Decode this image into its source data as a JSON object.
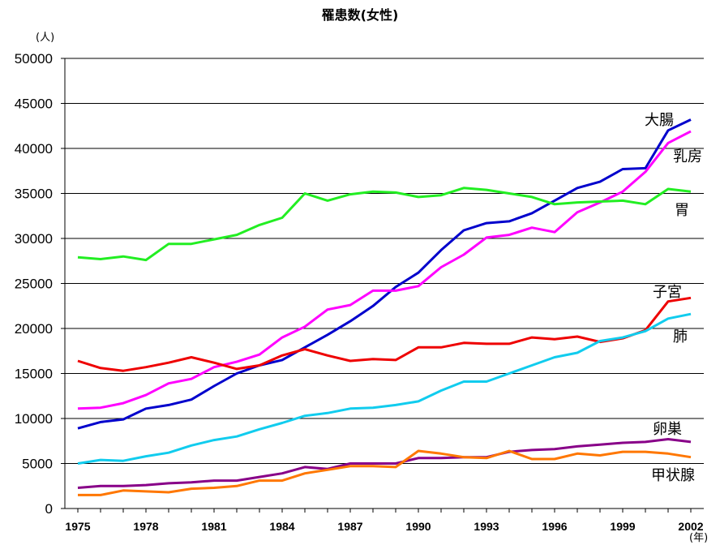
{
  "chart_data": {
    "type": "line",
    "title": "罹患数(女性)",
    "ylabel": "(人)",
    "xlabel": "(年)",
    "xlim": [
      1975,
      2002
    ],
    "ylim": [
      0,
      50000
    ],
    "yticks": [
      0,
      5000,
      10000,
      15000,
      20000,
      25000,
      30000,
      35000,
      40000,
      45000,
      50000
    ],
    "xticks": [
      1975,
      1978,
      1981,
      1984,
      1987,
      1990,
      1993,
      1996,
      1999,
      2002
    ],
    "grid": "horizontal",
    "legend": "inline-right",
    "x": [
      1975,
      1976,
      1977,
      1978,
      1979,
      1980,
      1981,
      1982,
      1983,
      1984,
      1985,
      1986,
      1987,
      1988,
      1989,
      1990,
      1991,
      1992,
      1993,
      1994,
      1995,
      1996,
      1997,
      1998,
      1999,
      2000,
      2001,
      2002
    ],
    "series": [
      {
        "name": "大腸",
        "color": "#0000cc",
        "values": [
          8900,
          9600,
          9900,
          11100,
          11500,
          12100,
          13600,
          15000,
          15900,
          16500,
          17900,
          19300,
          20800,
          22500,
          24600,
          26200,
          28700,
          30900,
          31700,
          31900,
          32800,
          34200,
          35600,
          36300,
          37700,
          37800,
          42000,
          43200
        ]
      },
      {
        "name": "乳房",
        "color": "#ff00ff",
        "values": [
          11100,
          11200,
          11700,
          12600,
          13900,
          14400,
          15700,
          16300,
          17100,
          19000,
          20200,
          22100,
          22600,
          24200,
          24200,
          24700,
          26800,
          28200,
          30100,
          30400,
          31200,
          30700,
          32900,
          34000,
          35200,
          37400,
          40600,
          41900
        ]
      },
      {
        "name": "胃",
        "color": "#22ee22",
        "values": [
          27900,
          27700,
          28000,
          27600,
          29400,
          29400,
          29900,
          30400,
          31500,
          32300,
          35000,
          34200,
          34900,
          35200,
          35100,
          34600,
          34800,
          35600,
          35400,
          35000,
          34600,
          33800,
          34000,
          34100,
          34200,
          33800,
          35500,
          35200
        ]
      },
      {
        "name": "子宮",
        "color": "#ee0000",
        "values": [
          16400,
          15600,
          15300,
          15700,
          16200,
          16800,
          16200,
          15500,
          15900,
          17000,
          17700,
          17000,
          16400,
          16600,
          16500,
          17900,
          17900,
          18400,
          18300,
          18300,
          19000,
          18800,
          19100,
          18500,
          18900,
          19800,
          23000,
          23400
        ]
      },
      {
        "name": "肺",
        "color": "#11ccee",
        "values": [
          5000,
          5400,
          5300,
          5800,
          6200,
          7000,
          7600,
          8000,
          8800,
          9500,
          10300,
          10600,
          11100,
          11200,
          11500,
          11900,
          13100,
          14100,
          14100,
          15000,
          15900,
          16800,
          17300,
          18600,
          19000,
          19700,
          21100,
          21600
        ]
      },
      {
        "name": "卵巣",
        "color": "#880088",
        "values": [
          2300,
          2500,
          2500,
          2600,
          2800,
          2900,
          3100,
          3100,
          3500,
          3900,
          4600,
          4400,
          5000,
          5000,
          5000,
          5600,
          5600,
          5700,
          5700,
          6300,
          6500,
          6600,
          6900,
          7100,
          7300,
          7400,
          7700,
          7400
        ]
      },
      {
        "name": "甲状腺",
        "color": "#ff7700",
        "values": [
          1500,
          1500,
          2000,
          1900,
          1800,
          2200,
          2300,
          2500,
          3100,
          3100,
          3900,
          4300,
          4700,
          4700,
          4600,
          6400,
          6100,
          5700,
          5600,
          6400,
          5500,
          5500,
          6100,
          5900,
          6300,
          6300,
          6100,
          5700
        ]
      }
    ]
  }
}
